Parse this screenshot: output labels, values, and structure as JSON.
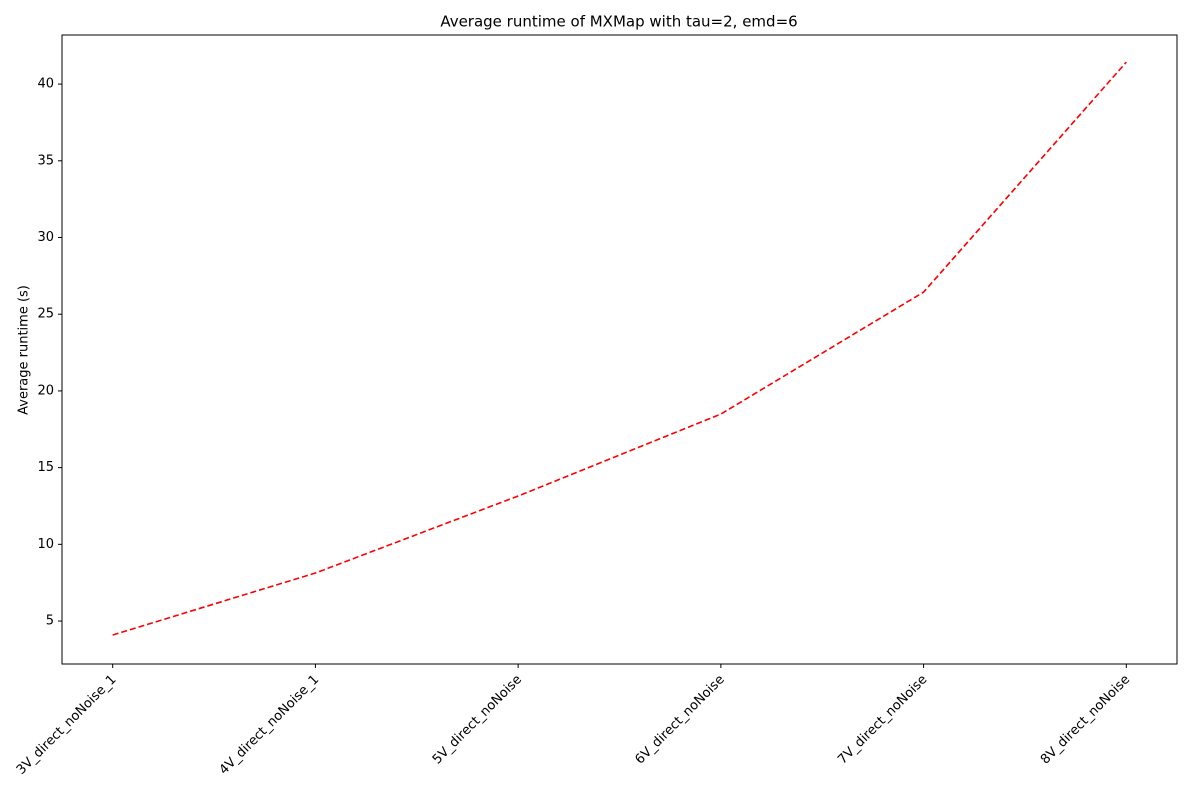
{
  "chart_data": {
    "type": "line",
    "title": "Average runtime of MXMap with tau=2, emd=6",
    "ylabel": "Average runtime (s)",
    "categories": [
      "3V_direct_noNoise_1",
      "4V_direct_noNoise_1",
      "5V_direct_noNoise",
      "6V_direct_noNoise",
      "7V_direct_noNoise",
      "8V_direct_noNoise"
    ],
    "values": [
      4.09,
      8.13,
      13.15,
      18.49,
      26.44,
      41.43
    ],
    "color": "#ff0000",
    "linestyle": "dashed",
    "ylim": [
      2.2,
      43.2
    ],
    "yticks": [
      5,
      10,
      15,
      20,
      25,
      30,
      35,
      40
    ],
    "grid": false
  }
}
